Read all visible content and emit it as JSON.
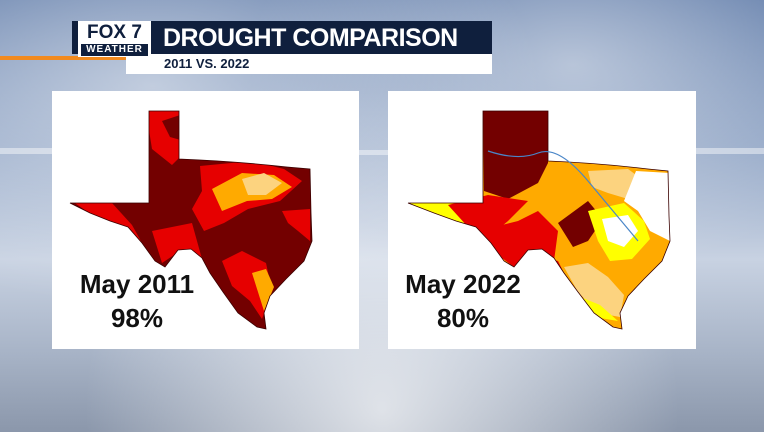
{
  "brand": {
    "name": "FOX 7",
    "sub": "WEATHER"
  },
  "header": {
    "title": "DROUGHT COMPARISON",
    "subtitle": "2011 VS. 2022"
  },
  "panels": [
    {
      "date": "May 2011",
      "percent": "98%"
    },
    {
      "date": "May 2022",
      "percent": "80%"
    }
  ],
  "colors": {
    "navy": "#0f1f3d",
    "accent_orange": "#f28a1e",
    "exceptional": "#730000",
    "extreme": "#e60000",
    "severe": "#ffaa00",
    "moderate": "#fcd37f",
    "abnormally_dry": "#ffff00",
    "none": "#ffffff"
  }
}
